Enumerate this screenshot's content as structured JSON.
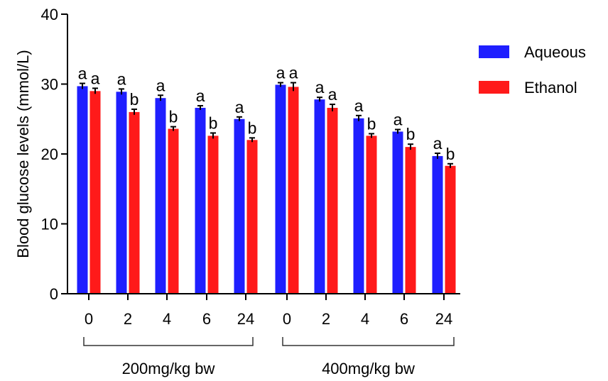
{
  "chart_data": {
    "type": "bar",
    "ylabel": "Blood glucose levels (mmol/L)",
    "ylim": [
      0,
      40
    ],
    "yticks": [
      0,
      10,
      20,
      30,
      40
    ],
    "categories": [
      "0",
      "2",
      "4",
      "6",
      "24",
      "0",
      "2",
      "4",
      "6",
      "24"
    ],
    "groups": [
      {
        "label": "200mg/kg bw",
        "categories": [
          "0",
          "2",
          "4",
          "6",
          "24"
        ]
      },
      {
        "label": "400mg/kg bw",
        "categories": [
          "0",
          "2",
          "4",
          "6",
          "24"
        ]
      }
    ],
    "series": [
      {
        "name": "Aqueous",
        "color": "#1f1fff",
        "values": [
          29.7,
          28.9,
          28.0,
          26.6,
          25.0,
          29.9,
          27.8,
          25.1,
          23.2,
          19.7
        ],
        "errors": [
          0.4,
          0.4,
          0.4,
          0.3,
          0.3,
          0.3,
          0.3,
          0.4,
          0.3,
          0.4
        ],
        "letters": [
          "a",
          "a",
          "a",
          "a",
          "a",
          "a",
          "a",
          "a",
          "a",
          "a"
        ]
      },
      {
        "name": "Ethanol",
        "color": "#ff1a1a",
        "values": [
          29.0,
          26.0,
          23.6,
          22.6,
          22.0,
          29.6,
          26.6,
          22.6,
          21.0,
          18.3
        ],
        "errors": [
          0.4,
          0.4,
          0.3,
          0.4,
          0.3,
          0.6,
          0.5,
          0.3,
          0.4,
          0.3
        ],
        "letters": [
          "a",
          "b",
          "b",
          "b",
          "b",
          "a",
          "a",
          "b",
          "b",
          "b"
        ]
      }
    ],
    "legend": {
      "position": "top-right",
      "entries": [
        "Aqueous",
        "Ethanol"
      ]
    }
  }
}
